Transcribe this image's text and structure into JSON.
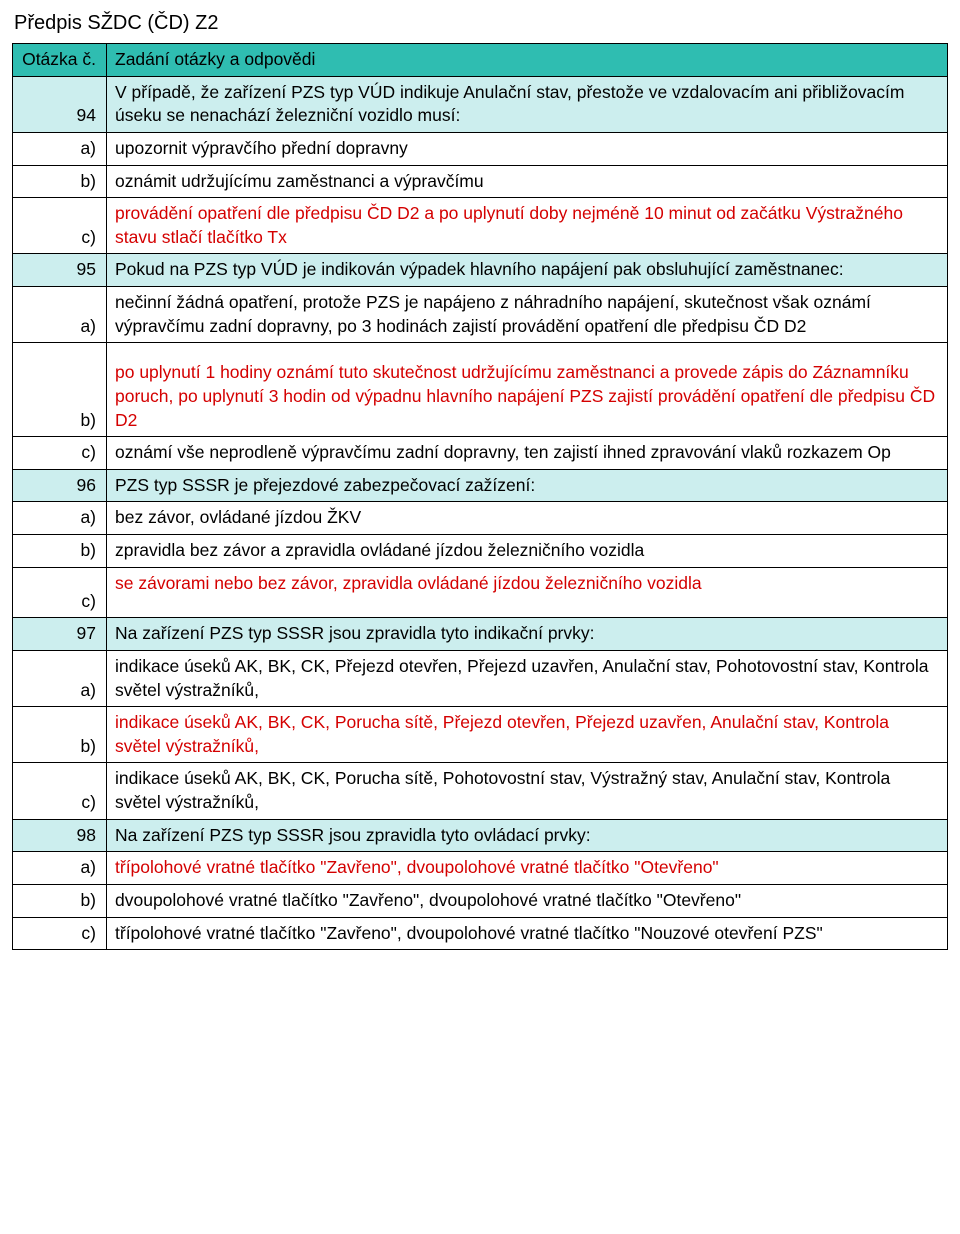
{
  "colors": {
    "header_bg": "#2fbdb1",
    "question_bg": "#cceeee",
    "correct_text": "#d40000",
    "border": "#000000",
    "page_bg": "#ffffff",
    "text": "#000000"
  },
  "page_title": "Předpis SŽDC (ČD) Z2",
  "header": {
    "col1": "Otázka č.",
    "col2": "Zadání otázky a odpovědi"
  },
  "rows": [
    {
      "label": "94",
      "text": "V případě, že zařízení PZS typ VÚD indikuje Anulační stav, přestože ve vzdalovacím ani přibližovacím úseku se nenachází železniční vozidlo musí:",
      "question": true
    },
    {
      "label": "a)",
      "text": "upozornit výpravčího přední dopravny"
    },
    {
      "label": "b)",
      "text": "oznámit udržujícímu zaměstnanci a výpravčímu"
    },
    {
      "label": "c)",
      "text": "provádění opatření dle předpisu ČD D2 a po uplynutí doby nejméně 10 minut od začátku Výstražného stavu stlačí tlačítko Tx",
      "correct": true
    },
    {
      "label": "95",
      "text": "Pokud na PZS typ VÚD je indikován výpadek hlavního napájení pak obsluhující zaměstnanec:",
      "question": true
    },
    {
      "label": "a)",
      "text": "nečinní žádná opatření, protože PZS je napájeno z náhradního napájení, skutečnost však oznámí výpravčímu zadní dopravny, po 3 hodinách zajistí provádění opatření dle předpisu ČD D2"
    },
    {
      "label": "b)",
      "text": "po uplynutí 1 hodiny oznámí tuto skutečnost udržujícímu zaměstnanci a provede zápis do Záznamníku poruch, po uplynutí 3 hodin od výpadnu hlavního napájení PZS zajistí provádění opatření dle předpisu ČD D2",
      "correct": true,
      "pad_top": true
    },
    {
      "label": "c)",
      "text": "oznámí vše neprodleně výpravčímu zadní dopravny, ten zajistí ihned zpravování vlaků rozkazem Op"
    },
    {
      "label": "96",
      "text": "PZS typ SSSR je přejezdové zabezpečovací zažízení:",
      "question": true
    },
    {
      "label": "a)",
      "text": "bez závor, ovládané jízdou ŽKV"
    },
    {
      "label": "b)",
      "text": "zpravidla bez závor a zpravidla ovládané jízdou železničního vozidla"
    },
    {
      "label": "c)",
      "text": "se závorami nebo bez závor, zpravidla ovládané jízdou železničního vozidla",
      "correct": true,
      "pad_bottom": true
    },
    {
      "label": "97",
      "text": "Na zařízení PZS typ SSSR jsou zpravidla tyto indikační prvky:",
      "question": true
    },
    {
      "label": "a)",
      "text": "indikace úseků AK, BK, CK, Přejezd otevřen, Přejezd uzavřen, Anulační stav, Pohotovostní stav, Kontrola světel výstražníků,"
    },
    {
      "label": "b)",
      "text": "indikace úseků AK, BK, CK, Porucha sítě, Přejezd otevřen, Přejezd uzavřen, Anulační stav, Kontrola světel výstražníků,",
      "correct": true
    },
    {
      "label": "c)",
      "text": "indikace úseků AK, BK, CK, Porucha sítě, Pohotovostní stav, Výstražný stav, Anulační stav, Kontrola světel výstražníků,"
    },
    {
      "label": "98",
      "text": "Na zařízení PZS typ SSSR jsou zpravidla tyto ovládací prvky:",
      "question": true
    },
    {
      "label": "a)",
      "text": "třípolohové vratné tlačítko \"Zavřeno\", dvoupolohové vratné tlačítko \"Otevřeno\"",
      "correct": true
    },
    {
      "label": "b)",
      "text": "dvoupolohové vratné tlačítko \"Zavřeno\", dvoupolohové vratné tlačítko \"Otevřeno\""
    },
    {
      "label": "c)",
      "text": "třípolohové vratné tlačítko \"Zavřeno\", dvoupolohové vratné tlačítko \"Nouzové otevření PZS\""
    }
  ]
}
